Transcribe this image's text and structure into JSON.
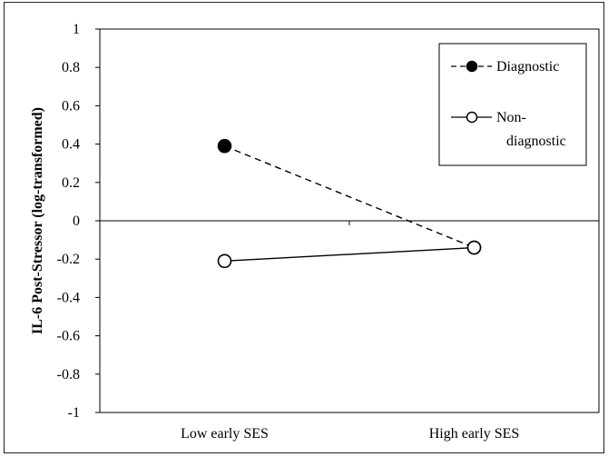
{
  "chart_data": {
    "type": "line",
    "categories": [
      "Low early SES",
      "High early SES"
    ],
    "series": [
      {
        "name": "Diagnostic",
        "values": [
          0.39,
          -0.14
        ],
        "line_style": "dashed",
        "marker": "filled-circle",
        "color": "#000000"
      },
      {
        "name": "Non-diagnostic",
        "values": [
          -0.21,
          -0.14
        ],
        "line_style": "solid",
        "marker": "open-circle",
        "color": "#000000"
      }
    ],
    "ylabel": "IL-6 Post-Stressor  (log-transformed)",
    "xlabel": "",
    "ylim": [
      -1,
      1
    ],
    "yticks": [
      "1",
      "0.8",
      "0.6",
      "0.4",
      "0.2",
      "0",
      "-0.2",
      "-0.4",
      "-0.6",
      "-0.8",
      "-1"
    ],
    "grid": false,
    "legend_position": "top-right",
    "legend_labels": [
      "Diagnostic",
      "Non-",
      "diagnostic"
    ]
  }
}
